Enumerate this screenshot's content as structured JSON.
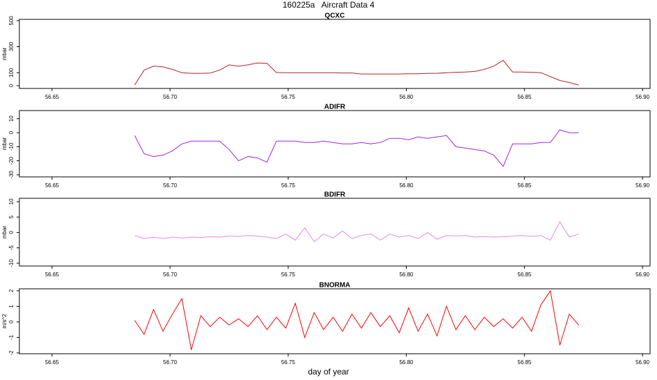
{
  "title": "160225a   Aircraft Data 4",
  "xlabel": "day of year",
  "chart_data": [
    {
      "type": "line",
      "title": "QCXC",
      "ylabel": "mbar",
      "color": "#b22222",
      "x": [
        56.685,
        56.689,
        56.693,
        56.697,
        56.701,
        56.705,
        56.709,
        56.713,
        56.717,
        56.721,
        56.725,
        56.729,
        56.733,
        56.737,
        56.741,
        56.745,
        56.749,
        56.753,
        56.757,
        56.761,
        56.765,
        56.769,
        56.773,
        56.777,
        56.781,
        56.785,
        56.789,
        56.793,
        56.797,
        56.801,
        56.805,
        56.809,
        56.813,
        56.817,
        56.821,
        56.825,
        56.829,
        56.833,
        56.837,
        56.841,
        56.845,
        56.849,
        56.853,
        56.857,
        56.861,
        56.865,
        56.869,
        56.873
      ],
      "values": [
        5,
        120,
        150,
        145,
        125,
        100,
        95,
        95,
        97,
        120,
        160,
        150,
        160,
        175,
        172,
        102,
        100,
        100,
        100,
        100,
        100,
        100,
        98,
        98,
        90,
        90,
        90,
        90,
        90,
        92,
        92,
        95,
        95,
        100,
        103,
        105,
        110,
        125,
        150,
        195,
        105,
        105,
        103,
        100,
        70,
        40,
        25,
        5
      ],
      "xlim": [
        56.6362,
        56.9032
      ],
      "xticks": [
        56.65,
        {
          "value": 56.7,
          "label": "56.70"
        },
        56.75,
        {
          "value": 56.8,
          "label": "56.80"
        },
        56.85,
        {
          "value": 56.9,
          "label": "56.90"
        }
      ],
      "ylim": [
        -21,
        510
      ],
      "yticks": [
        0,
        100,
        300,
        500
      ]
    },
    {
      "type": "line",
      "title": "ADIFR",
      "ylabel": "mbar",
      "color": "#a020f0",
      "x": [
        56.685,
        56.689,
        56.693,
        56.697,
        56.701,
        56.705,
        56.709,
        56.713,
        56.717,
        56.721,
        56.725,
        56.729,
        56.733,
        56.737,
        56.741,
        56.745,
        56.749,
        56.753,
        56.757,
        56.761,
        56.765,
        56.769,
        56.773,
        56.777,
        56.781,
        56.785,
        56.789,
        56.793,
        56.797,
        56.801,
        56.805,
        56.809,
        56.813,
        56.817,
        56.821,
        56.825,
        56.829,
        56.833,
        56.837,
        56.841,
        56.845,
        56.849,
        56.853,
        56.857,
        56.861,
        56.865,
        56.869,
        56.873
      ],
      "values": [
        -2,
        -15,
        -17,
        -16,
        -13,
        -8,
        -6,
        -6,
        -6,
        -6,
        -12,
        -20,
        -17,
        -18,
        -21,
        -6,
        -6,
        -6,
        -7,
        -7,
        -6,
        -7,
        -8,
        -8,
        -7,
        -8,
        -7,
        -4,
        -4,
        -5,
        -3,
        -4,
        -3,
        -2,
        -10,
        -11,
        -12,
        -13,
        -16,
        -24,
        -8,
        -8,
        -8,
        -7,
        -7,
        2,
        0,
        0
      ],
      "xlim": [
        56.6362,
        56.9032
      ],
      "xticks": [
        56.65,
        {
          "value": 56.7,
          "label": "56.70"
        },
        56.75,
        {
          "value": 56.8,
          "label": "56.80"
        },
        56.85,
        {
          "value": 56.9,
          "label": "56.90"
        }
      ],
      "ylim": [
        -31.5,
        15.8
      ],
      "yticks": [
        10,
        0,
        -10,
        -20,
        -30
      ]
    },
    {
      "type": "line",
      "title": "BDIFR",
      "ylabel": "mbar",
      "color": "#ee82ee",
      "x": [
        56.685,
        56.689,
        56.693,
        56.697,
        56.701,
        56.705,
        56.709,
        56.713,
        56.717,
        56.721,
        56.725,
        56.729,
        56.733,
        56.737,
        56.741,
        56.745,
        56.749,
        56.753,
        56.757,
        56.761,
        56.765,
        56.769,
        56.773,
        56.777,
        56.781,
        56.785,
        56.789,
        56.793,
        56.797,
        56.801,
        56.805,
        56.809,
        56.813,
        56.817,
        56.821,
        56.825,
        56.829,
        56.833,
        56.837,
        56.841,
        56.845,
        56.849,
        56.853,
        56.857,
        56.861,
        56.865,
        56.869,
        56.873
      ],
      "values": [
        -1,
        -2,
        -1.5,
        -2,
        -1.5,
        -1.8,
        -1.5,
        -1.6,
        -1.4,
        -1.5,
        -1.2,
        -1.3,
        -1.0,
        -1.2,
        -1.5,
        -2.0,
        -0.5,
        -2.5,
        1.5,
        -3.0,
        -0.5,
        -1.8,
        0.5,
        -2.0,
        -1.0,
        -0.5,
        -2.5,
        -0.5,
        -1.5,
        -1.0,
        -2.0,
        0.0,
        -2.2,
        -1.0,
        -1.2,
        -1.0,
        -1.5,
        -1.3,
        -1.5,
        -1.4,
        -1.2,
        -1.0,
        -1.3,
        -1.0,
        -2.5,
        3.5,
        -1.5,
        -0.5
      ],
      "xlim": [
        56.6362,
        56.9032
      ],
      "xticks": [
        56.65,
        {
          "value": 56.7,
          "label": "56.70"
        },
        56.75,
        {
          "value": 56.8,
          "label": "56.80"
        },
        56.85,
        {
          "value": 56.9,
          "label": "56.90"
        }
      ],
      "ylim": [
        -10.9,
        11.1
      ],
      "yticks": [
        10,
        5,
        0,
        -5,
        -10
      ]
    },
    {
      "type": "line",
      "title": "BNORMA",
      "ylabel": "m/s^2",
      "color": "#ff0000",
      "x": [
        56.685,
        56.689,
        56.693,
        56.697,
        56.701,
        56.705,
        56.709,
        56.713,
        56.717,
        56.721,
        56.725,
        56.729,
        56.733,
        56.737,
        56.741,
        56.745,
        56.749,
        56.753,
        56.757,
        56.761,
        56.765,
        56.769,
        56.773,
        56.777,
        56.781,
        56.785,
        56.789,
        56.793,
        56.797,
        56.801,
        56.805,
        56.809,
        56.813,
        56.817,
        56.821,
        56.825,
        56.829,
        56.833,
        56.837,
        56.841,
        56.845,
        56.849,
        56.853,
        56.857,
        56.861,
        56.865,
        56.869,
        56.873
      ],
      "values": [
        0.1,
        -0.8,
        0.8,
        -0.6,
        0.5,
        1.5,
        -1.8,
        0.4,
        -0.3,
        0.3,
        -0.2,
        0.2,
        -0.3,
        0.4,
        -0.5,
        0.3,
        -0.4,
        1.2,
        -1.0,
        0.6,
        -0.5,
        0.3,
        -0.6,
        0.5,
        -0.4,
        0.6,
        -0.3,
        0.4,
        -0.7,
        0.9,
        -0.6,
        0.5,
        -0.9,
        1.0,
        -0.5,
        0.4,
        -0.5,
        0.3,
        -0.3,
        0.2,
        -0.4,
        0.3,
        -0.6,
        1.1,
        2.0,
        -1.5,
        0.5,
        -0.2
      ],
      "xlim": [
        56.6362,
        56.9032
      ],
      "xticks": [
        56.65,
        {
          "value": 56.7,
          "label": "56.70"
        },
        56.75,
        {
          "value": 56.8,
          "label": "56.80"
        },
        56.85,
        {
          "value": 56.9,
          "label": "56.90"
        }
      ],
      "ylim": [
        -2.05,
        2.13
      ],
      "yticks": [
        2,
        1,
        0,
        -1,
        -2
      ]
    }
  ]
}
